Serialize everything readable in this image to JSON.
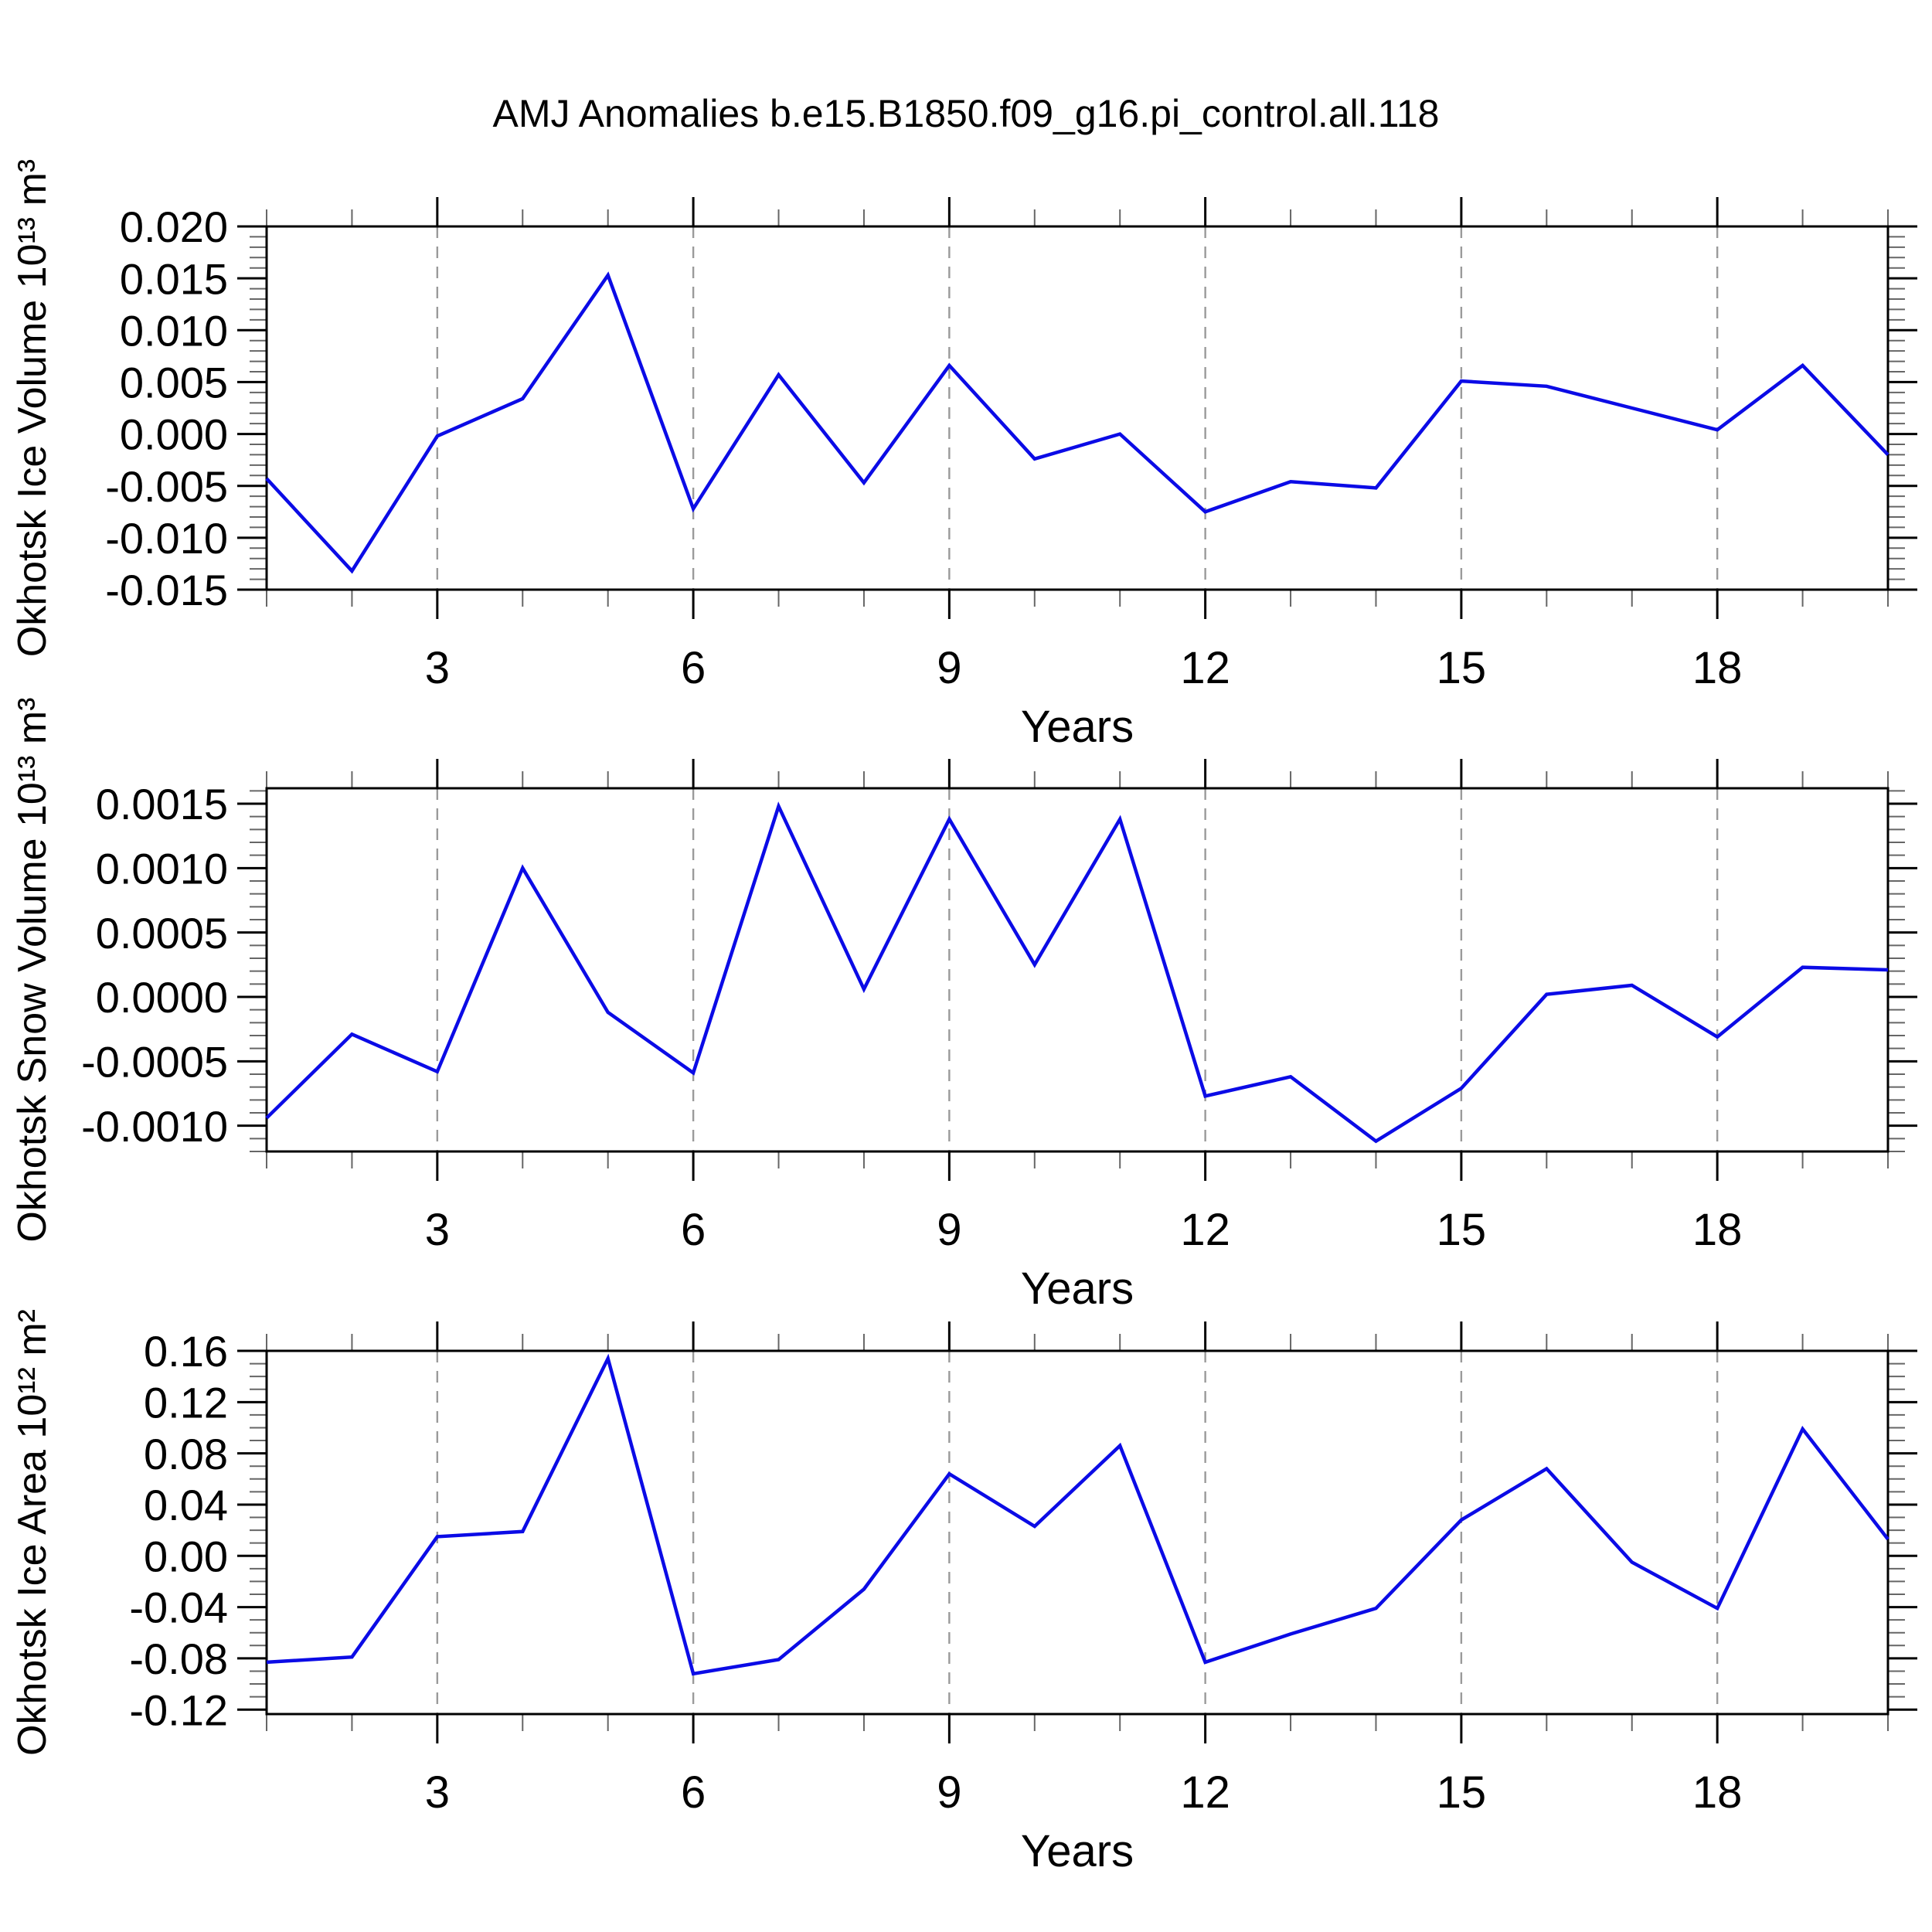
{
  "header": {
    "title": "AMJ Anomalies b.e15.B1850.f09_g16.pi_control.all.118"
  },
  "chart_data": [
    {
      "type": "line",
      "series_name": "Okhotsk Ice Volume anomaly",
      "ylabel": "Okhotsk Ice Volume 10¹³ m³",
      "xlabel": "Years",
      "x": [
        1,
        2,
        3,
        4,
        5,
        6,
        7,
        8,
        9,
        10,
        11,
        12,
        13,
        14,
        15,
        16,
        17,
        18,
        19,
        20
      ],
      "values": [
        -0.0043,
        -0.0132,
        -0.0002,
        0.0034,
        0.0153,
        -0.0072,
        0.0057,
        -0.0047,
        0.0066,
        -0.0024,
        0.0,
        -0.0075,
        -0.0046,
        -0.0052,
        0.0051,
        0.0046,
        0.0025,
        0.0004,
        0.0066,
        -0.002
      ],
      "xlim": [
        1,
        20
      ],
      "ylim": [
        -0.015,
        0.02
      ],
      "xticks_major": [
        3,
        6,
        9,
        12,
        15,
        18
      ],
      "xtick_labels": [
        "3",
        "6",
        "9",
        "12",
        "15",
        "18"
      ],
      "xtick_minor_step": 1,
      "ytick_values": [
        0.02,
        0.015,
        0.01,
        0.005,
        0.0,
        -0.005,
        -0.01,
        -0.015
      ],
      "ytick_labels": [
        "0.020",
        "0.015",
        "0.010",
        "0.005",
        "0.000",
        "-0.005",
        "-0.010",
        "-0.015"
      ],
      "ytick_minor_step": 0.001,
      "grid": "vertical-dashed-at-major-xticks",
      "legend": "none",
      "line_color": "#0b0be6"
    },
    {
      "type": "line",
      "series_name": "Okhotsk Snow Volume anomaly",
      "ylabel": "Okhotsk Snow Volume 10¹³ m³",
      "xlabel": "Years",
      "x": [
        1,
        2,
        3,
        4,
        5,
        6,
        7,
        8,
        9,
        10,
        11,
        12,
        13,
        14,
        15,
        16,
        17,
        18,
        19,
        20
      ],
      "values": [
        -0.00094,
        -0.00029,
        -0.00058,
        0.001,
        -0.00012,
        -0.00059,
        0.00148,
        6e-05,
        0.00138,
        0.00025,
        0.00138,
        -0.00077,
        -0.00062,
        -0.00112,
        -0.00071,
        2e-05,
        9e-05,
        -0.00031,
        0.00023,
        0.00021
      ],
      "xlim": [
        1,
        20
      ],
      "ylim": [
        -0.0012,
        0.00162
      ],
      "xticks_major": [
        3,
        6,
        9,
        12,
        15,
        18
      ],
      "xtick_labels": [
        "3",
        "6",
        "9",
        "12",
        "15",
        "18"
      ],
      "xtick_minor_step": 1,
      "ytick_values": [
        0.0015,
        0.001,
        0.0005,
        0.0,
        -0.0005,
        -0.001
      ],
      "ytick_labels": [
        "0.0015",
        "0.0010",
        "0.0005",
        "0.0000",
        "-0.0005",
        "-0.0010"
      ],
      "ytick_minor_step": 0.0001,
      "grid": "vertical-dashed-at-major-xticks",
      "legend": "none",
      "line_color": "#0b0be6"
    },
    {
      "type": "line",
      "series_name": "Okhotsk Ice Area anomaly",
      "ylabel": "Okhotsk Ice Area 10¹² m²",
      "xlabel": "Years",
      "x": [
        1,
        2,
        3,
        4,
        5,
        6,
        7,
        8,
        9,
        10,
        11,
        12,
        13,
        14,
        15,
        16,
        17,
        18,
        19,
        20
      ],
      "values": [
        -0.083,
        -0.079,
        0.015,
        0.019,
        0.154,
        -0.092,
        -0.081,
        -0.026,
        0.064,
        0.023,
        0.086,
        -0.083,
        -0.061,
        -0.041,
        0.028,
        0.068,
        -0.005,
        -0.041,
        0.099,
        0.013
      ],
      "xlim": [
        1,
        20
      ],
      "ylim": [
        -0.1235,
        0.16
      ],
      "xticks_major": [
        3,
        6,
        9,
        12,
        15,
        18
      ],
      "xtick_labels": [
        "3",
        "6",
        "9",
        "12",
        "15",
        "18"
      ],
      "xtick_minor_step": 1,
      "ytick_values": [
        0.16,
        0.12,
        0.08,
        0.04,
        0.0,
        -0.04,
        -0.08,
        -0.12
      ],
      "ytick_labels": [
        "0.16",
        "0.12",
        "0.08",
        "0.04",
        "0.00",
        "-0.04",
        "-0.08",
        "-0.12"
      ],
      "ytick_minor_step": 0.01,
      "grid": "vertical-dashed-at-major-xticks",
      "legend": "none",
      "line_color": "#0b0be6"
    }
  ]
}
